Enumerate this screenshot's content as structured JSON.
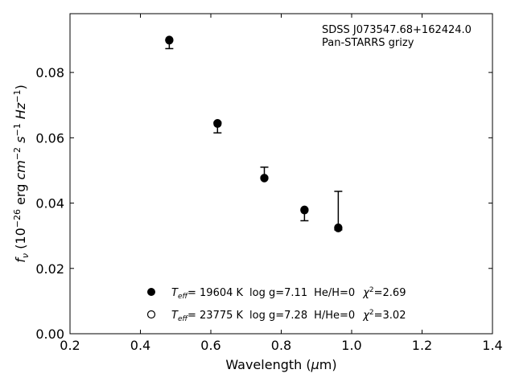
{
  "chart_data": {
    "type": "scatter",
    "object_name": "SDSS J073547.68+162424.0",
    "survey": "Pan-STARRS grizy",
    "xlabel": "Wavelength (μm)",
    "ylabel": "f_ν (10^−26 erg cm^−2 s^−1 Hz^−1)",
    "xlim": [
      0.2,
      1.4
    ],
    "ylim": [
      0.0,
      0.098
    ],
    "xticks": [
      0.2,
      0.4,
      0.6,
      0.8,
      1.0,
      1.2,
      1.4
    ],
    "xtick_labels": [
      "0.2",
      "0.4",
      "0.6",
      "0.8",
      "1.0",
      "1.2",
      "1.4"
    ],
    "yticks": [
      0.0,
      0.02,
      0.04,
      0.06,
      0.08
    ],
    "ytick_labels": [
      "0.00",
      "0.02",
      "0.04",
      "0.06",
      "0.08"
    ],
    "observed": {
      "x": [
        0.482,
        0.619,
        0.752,
        0.866,
        0.962
      ],
      "y": [
        0.0886,
        0.0638,
        0.0478,
        0.0378,
        0.0318
      ],
      "err_low": [
        0.0013,
        0.0023,
        0.0,
        0.0032,
        0.0
      ],
      "err_high": [
        0.0013,
        0.001,
        0.0032,
        0.0,
        0.0118
      ]
    },
    "series": [
      {
        "marker": "filled-circle",
        "x": [
          0.482,
          0.619,
          0.752,
          0.866,
          0.962
        ],
        "y": [
          0.09,
          0.0645,
          0.0477,
          0.038,
          0.0325
        ],
        "legend": {
          "teff_value": "= 19604 K",
          "logg": "log g=7.11",
          "comp": "He/H=0",
          "chi2": "=2.69"
        }
      },
      {
        "marker": "open-circle",
        "x": [
          0.482,
          0.619,
          0.752,
          0.866,
          0.962
        ],
        "y": [
          0.0898,
          0.0643,
          0.0476,
          0.0378,
          0.0323
        ],
        "legend": {
          "teff_value": "= 23775 K",
          "logg": "log g=7.28",
          "comp": "H/He=0",
          "chi2": "=3.02"
        }
      }
    ],
    "legend_placement": "lower-center",
    "grid": false
  }
}
